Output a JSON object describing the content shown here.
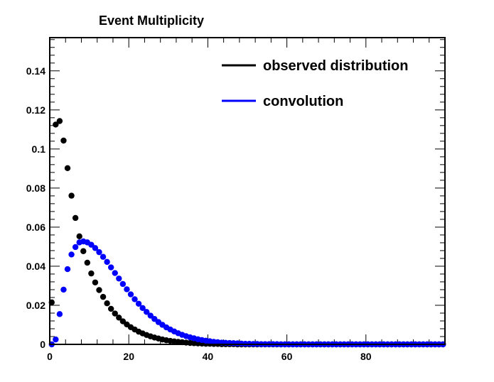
{
  "chart_data": {
    "type": "scatter",
    "title": "Event Multiplicity",
    "xlabel": "",
    "ylabel": "",
    "xlim": [
      0,
      100
    ],
    "ylim": [
      0,
      0.157
    ],
    "x_ticks": [
      0,
      20,
      40,
      60,
      80
    ],
    "y_ticks": [
      0,
      0.02,
      0.04,
      0.06,
      0.08,
      0.1,
      0.12,
      0.14
    ],
    "y_tick_labels": [
      "0",
      "0.02",
      "0.04",
      "0.06",
      "0.08",
      "0.1",
      "0.12",
      "0.14"
    ],
    "grid": false,
    "legend_position": "top-right",
    "series": [
      {
        "name": "observed distribution",
        "color": "#000000",
        "x": [
          0,
          1,
          2,
          3,
          4,
          5,
          6,
          7,
          8,
          9,
          10,
          11,
          12,
          13,
          14,
          15,
          16,
          17,
          18,
          19,
          20,
          21,
          22,
          23,
          24,
          25,
          26,
          27,
          28,
          29,
          30,
          31,
          32,
          33,
          34,
          35,
          36,
          37,
          38,
          39,
          40,
          41,
          42,
          43,
          44,
          45,
          46,
          47,
          48,
          49,
          50,
          51,
          52,
          53,
          54,
          55,
          56,
          57,
          58,
          59,
          60,
          61,
          62,
          63,
          64,
          65,
          66,
          67,
          68,
          69,
          70,
          71,
          72,
          73,
          74,
          75,
          76,
          77,
          78,
          79,
          80,
          81,
          82,
          83,
          84,
          85,
          86,
          87,
          88,
          89,
          90,
          91,
          92,
          93,
          94,
          95,
          96,
          97,
          98,
          99
        ],
        "y": [
          0.0215,
          0.1125,
          0.1143,
          0.1043,
          0.0902,
          0.0761,
          0.0647,
          0.0553,
          0.0477,
          0.0418,
          0.0363,
          0.0317,
          0.0278,
          0.0243,
          0.021,
          0.0182,
          0.0158,
          0.0137,
          0.0118,
          0.0102,
          0.0088,
          0.0076,
          0.0065,
          0.0056,
          0.0048,
          0.0041,
          0.0035,
          0.003,
          0.0025,
          0.0021,
          0.0018,
          0.0015,
          0.0013,
          0.0011,
          0.0009,
          0.0007,
          0.0006,
          0.0005,
          0.0004,
          0.0003,
          0.0003,
          0.0002,
          0.0002,
          0.0001,
          0.0001,
          0.0001,
          0.0001,
          0,
          0,
          0,
          0,
          0,
          0,
          0,
          0,
          0,
          0,
          0,
          0,
          0,
          0,
          0,
          0,
          0,
          0,
          0,
          0,
          0,
          0,
          0,
          0,
          0,
          0,
          0,
          0,
          0,
          0,
          0,
          0,
          0,
          0,
          0,
          0,
          0,
          0,
          0,
          0,
          0,
          0,
          0,
          0,
          0,
          0,
          0,
          0,
          0,
          0,
          0,
          0,
          0
        ]
      },
      {
        "name": "convolution",
        "color": "#0000ff",
        "x": [
          0,
          1,
          2,
          3,
          4,
          5,
          6,
          7,
          8,
          9,
          10,
          11,
          12,
          13,
          14,
          15,
          16,
          17,
          18,
          19,
          20,
          21,
          22,
          23,
          24,
          25,
          26,
          27,
          28,
          29,
          30,
          31,
          32,
          33,
          34,
          35,
          36,
          37,
          38,
          39,
          40,
          41,
          42,
          43,
          44,
          45,
          46,
          47,
          48,
          49,
          50,
          51,
          52,
          53,
          54,
          55,
          56,
          57,
          58,
          59,
          60,
          61,
          62,
          63,
          64,
          65,
          66,
          67,
          68,
          69,
          70,
          71,
          72,
          73,
          74,
          75,
          76,
          77,
          78,
          79,
          80,
          81,
          82,
          83,
          84,
          85,
          86,
          87,
          88,
          89,
          90,
          91,
          92,
          93,
          94,
          95,
          96,
          97,
          98,
          99
        ],
        "y": [
          0,
          0.0025,
          0.0155,
          0.028,
          0.0385,
          0.046,
          0.0498,
          0.0522,
          0.0527,
          0.0522,
          0.051,
          0.0493,
          0.0472,
          0.0448,
          0.0422,
          0.0394,
          0.0365,
          0.0337,
          0.0309,
          0.0282,
          0.0256,
          0.0231,
          0.0208,
          0.0186,
          0.0166,
          0.0147,
          0.013,
          0.0114,
          0.01,
          0.0087,
          0.0076,
          0.0066,
          0.0057,
          0.0049,
          0.0042,
          0.0036,
          0.0031,
          0.0026,
          0.0022,
          0.0019,
          0.0016,
          0.0013,
          0.0011,
          0.0009,
          0.0008,
          0.0007,
          0.0006,
          0.0005,
          0.0004,
          0.0003,
          0.0003,
          0.0002,
          0.0002,
          0.0001,
          0.0001,
          0.0001,
          0.0001,
          0.0001,
          0,
          0,
          0,
          0,
          0,
          0,
          0,
          0,
          0,
          0,
          0,
          0,
          0,
          0,
          0,
          0,
          0,
          0,
          0,
          0,
          0,
          0,
          0,
          0,
          0,
          0,
          0,
          0,
          0,
          0,
          0,
          0,
          0,
          0,
          0,
          0,
          0,
          0,
          0,
          0,
          0,
          0
        ]
      }
    ]
  }
}
